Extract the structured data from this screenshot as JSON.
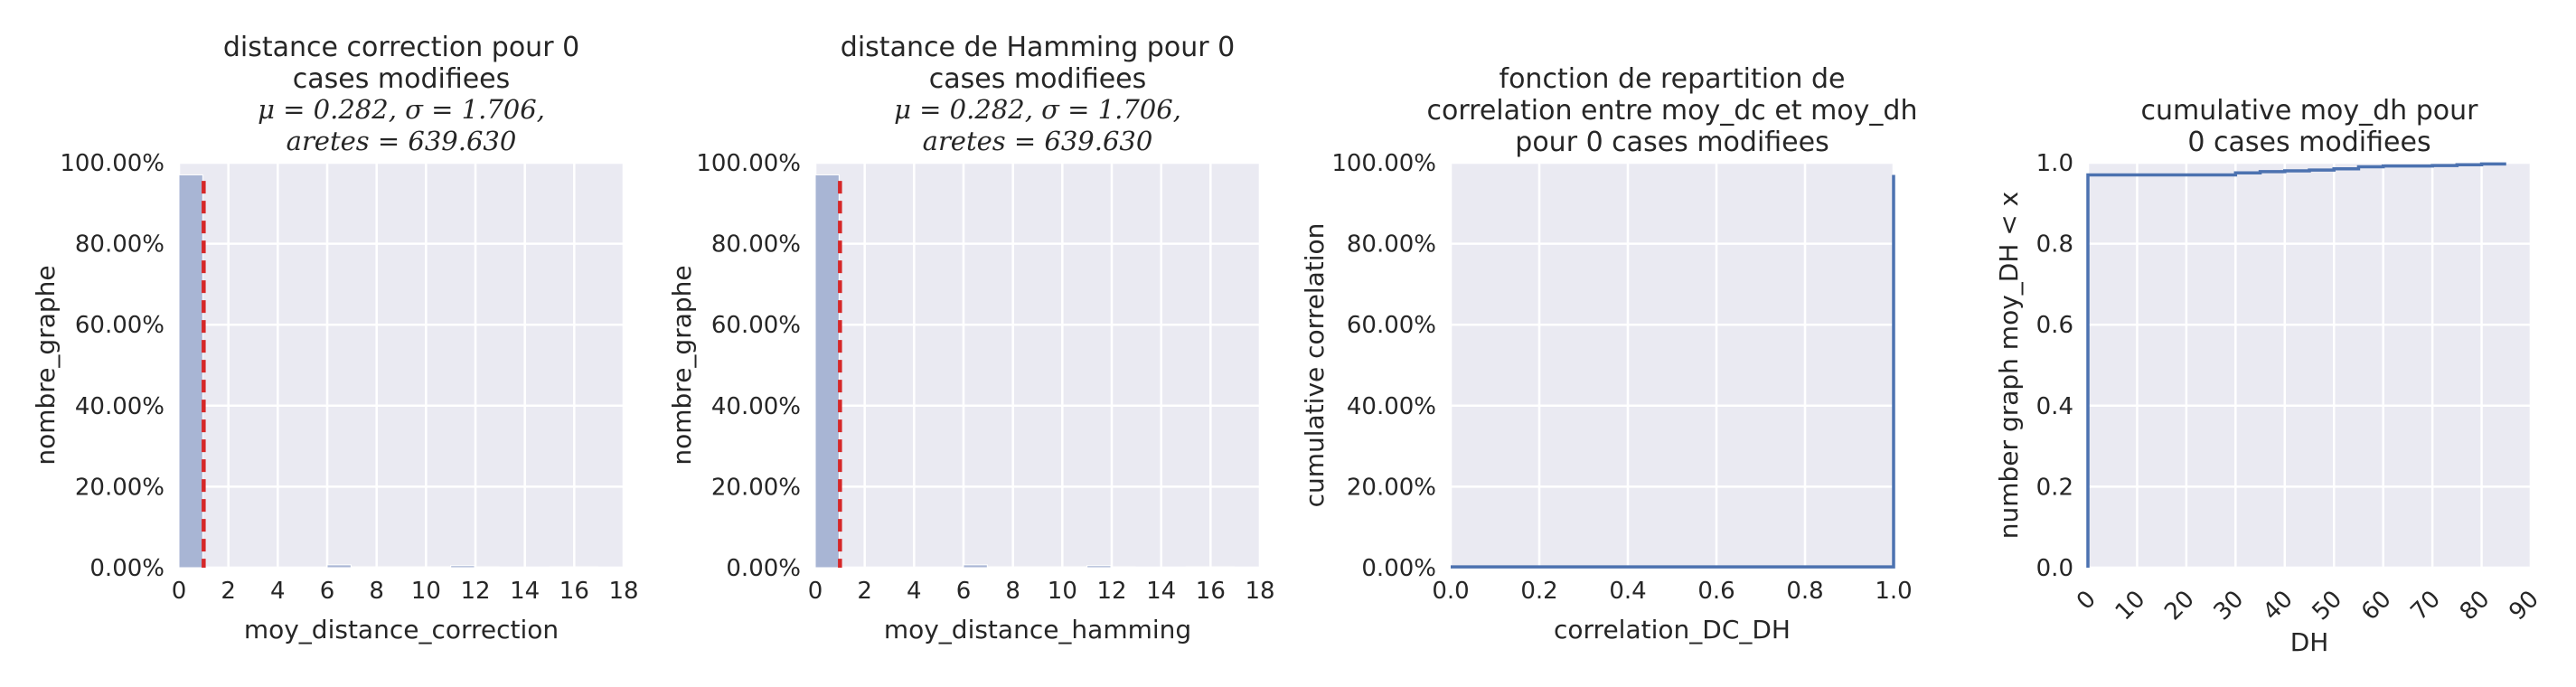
{
  "chart_data": [
    {
      "type": "bar",
      "title": [
        "distance correction pour 0",
        "cases modifiees"
      ],
      "stats": [
        "μ = 0.282,  σ = 1.706,",
        "aretes = 639.630"
      ],
      "xlabel": "moy_distance_correction",
      "ylabel": "nombre_graphe",
      "xlim": [
        0,
        18
      ],
      "ylim": [
        0,
        1
      ],
      "x_ticks": [
        "0",
        "2",
        "4",
        "6",
        "8",
        "10",
        "12",
        "14",
        "16",
        "18"
      ],
      "y_ticks": [
        "0.00%",
        "20.00%",
        "40.00%",
        "60.00%",
        "80.00%",
        "100.00%"
      ],
      "bins": [
        {
          "x0": 0,
          "x1": 1,
          "value": 0.97
        },
        {
          "x0": 6,
          "x1": 7,
          "value": 0.007
        },
        {
          "x0": 7,
          "x1": 8,
          "value": 0.002
        },
        {
          "x0": 8,
          "x1": 9,
          "value": 0.002
        },
        {
          "x0": 9,
          "x1": 10,
          "value": 0.002
        },
        {
          "x0": 10,
          "x1": 11,
          "value": 0.002
        },
        {
          "x0": 11,
          "x1": 12,
          "value": 0.005
        },
        {
          "x0": 12,
          "x1": 13,
          "value": 0.002
        },
        {
          "x0": 15,
          "x1": 16,
          "value": 0.002
        },
        {
          "x0": 16,
          "x1": 17,
          "value": 0.002
        }
      ],
      "mean_line": 1.0,
      "colors": {
        "bar": "#a8b5d4",
        "mean": "#d62728"
      }
    },
    {
      "type": "bar",
      "title": [
        "distance de Hamming pour 0",
        "cases modifiees"
      ],
      "stats": [
        "μ = 0.282,  σ = 1.706,",
        "aretes = 639.630"
      ],
      "xlabel": "moy_distance_hamming",
      "ylabel": "nombre_graphe",
      "xlim": [
        0,
        18
      ],
      "ylim": [
        0,
        1
      ],
      "x_ticks": [
        "0",
        "2",
        "4",
        "6",
        "8",
        "10",
        "12",
        "14",
        "16",
        "18"
      ],
      "y_ticks": [
        "0.00%",
        "20.00%",
        "40.00%",
        "60.00%",
        "80.00%",
        "100.00%"
      ],
      "bins": [
        {
          "x0": 0,
          "x1": 1,
          "value": 0.97
        },
        {
          "x0": 6,
          "x1": 7,
          "value": 0.007
        },
        {
          "x0": 7,
          "x1": 8,
          "value": 0.002
        },
        {
          "x0": 8,
          "x1": 9,
          "value": 0.002
        },
        {
          "x0": 9,
          "x1": 10,
          "value": 0.002
        },
        {
          "x0": 10,
          "x1": 11,
          "value": 0.002
        },
        {
          "x0": 11,
          "x1": 12,
          "value": 0.005
        },
        {
          "x0": 12,
          "x1": 13,
          "value": 0.002
        },
        {
          "x0": 15,
          "x1": 16,
          "value": 0.002
        },
        {
          "x0": 16,
          "x1": 17,
          "value": 0.002
        }
      ],
      "mean_line": 1.0,
      "colors": {
        "bar": "#a8b5d4",
        "mean": "#d62728"
      }
    },
    {
      "type": "line",
      "title": [
        "fonction de repartition de",
        "correlation entre moy_dc et moy_dh",
        "pour 0 cases modifiees"
      ],
      "xlabel": "correlation_DC_DH",
      "ylabel": "cumulative correlation",
      "xlim": [
        0,
        1
      ],
      "ylim": [
        0,
        1
      ],
      "x_ticks": [
        "0.0",
        "0.2",
        "0.4",
        "0.6",
        "0.8",
        "1.0"
      ],
      "y_ticks": [
        "0.00%",
        "20.00%",
        "40.00%",
        "60.00%",
        "80.00%",
        "100.00%"
      ],
      "series": [
        {
          "x": [
            0,
            1,
            1
          ],
          "y": [
            0.002,
            0.002,
            0.97
          ]
        }
      ],
      "colors": {
        "line": "#4c72b0"
      }
    },
    {
      "type": "line",
      "title": [
        "cumulative moy_dh pour",
        "0 cases modifiees"
      ],
      "xlabel": "DH",
      "ylabel": "number graph moy_DH < x",
      "xlim": [
        0,
        90
      ],
      "ylim": [
        0,
        1
      ],
      "x_ticks": [
        "0",
        "10",
        "20",
        "30",
        "40",
        "50",
        "60",
        "70",
        "80",
        "90"
      ],
      "y_ticks": [
        "0.0",
        "0.2",
        "0.4",
        "0.6",
        "0.8",
        "1.0"
      ],
      "series": [
        {
          "x": [
            0,
            0,
            30,
            30,
            35,
            40,
            45,
            50,
            55,
            60,
            70,
            75,
            80,
            85
          ],
          "y": [
            0,
            0.97,
            0.97,
            0.975,
            0.978,
            0.98,
            0.982,
            0.985,
            0.99,
            0.992,
            0.993,
            0.995,
            0.997,
            0.997
          ]
        }
      ],
      "colors": {
        "line": "#4c72b0"
      }
    }
  ]
}
